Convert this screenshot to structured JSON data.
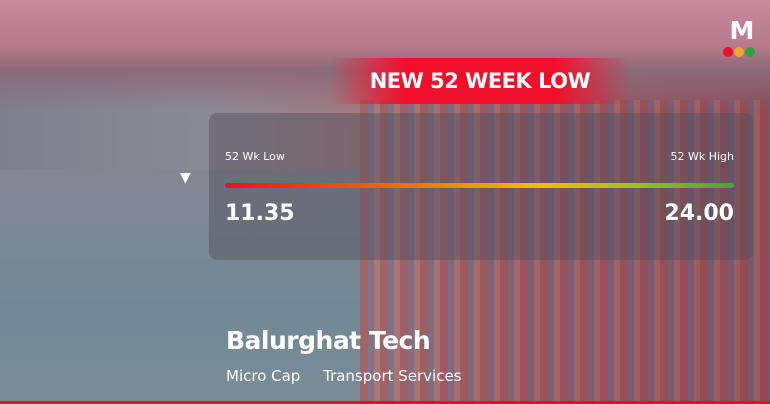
{
  "banner": {
    "title": "NEW 52 WEEK LOW"
  },
  "range": {
    "low_label": "52 Wk Low",
    "high_label": "52 Wk High",
    "low_value": "11.35",
    "high_value": "24.00",
    "current_marker": "down-triangle-icon"
  },
  "stock": {
    "name": "Balurghat Tech",
    "tags": [
      "Micro Cap",
      "Transport Services"
    ]
  },
  "logo": {
    "letter": "M",
    "dot_colors": [
      "#e8102a",
      "#f0a830",
      "#30a040"
    ]
  },
  "colors": {
    "accent": "#f0102a",
    "bar_start": "#f01010",
    "bar_end": "#40a830"
  }
}
